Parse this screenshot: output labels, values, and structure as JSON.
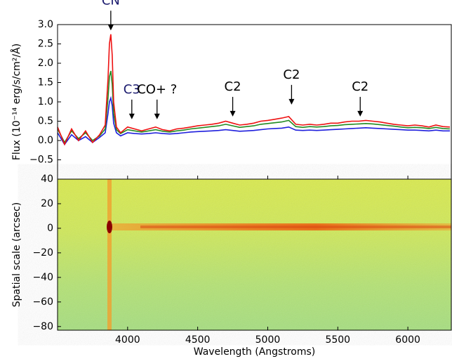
{
  "chart_data": [
    {
      "type": "line",
      "ylabel": "Flux (10⁻¹⁴ erg/s/cm²/Å)",
      "xlim": [
        3500,
        6310
      ],
      "xticks": [
        4000,
        4500,
        5000,
        5500,
        6000
      ],
      "ylim": [
        -1.0,
        3.0
      ],
      "yticks": [
        {
          "value": 3,
          "label": "3.0"
        },
        2.5,
        {
          "value": 2,
          "label": "2.0"
        },
        1.5,
        {
          "value": 1,
          "label": "1.0"
        },
        0.5,
        {
          "value": 0,
          "label": "0.0"
        },
        {
          "value": -0.5,
          "label": "−0.5"
        }
      ],
      "x": [
        3500,
        3550,
        3600,
        3650,
        3700,
        3750,
        3800,
        3840,
        3860,
        3870,
        3880,
        3890,
        3900,
        3920,
        3950,
        4000,
        4050,
        4100,
        4150,
        4200,
        4250,
        4300,
        4350,
        4400,
        4450,
        4500,
        4550,
        4600,
        4650,
        4700,
        4750,
        4800,
        4850,
        4900,
        4950,
        5000,
        5050,
        5100,
        5150,
        5200,
        5250,
        5300,
        5350,
        5400,
        5450,
        5500,
        5550,
        5600,
        5650,
        5700,
        5750,
        5800,
        5850,
        5900,
        5950,
        6000,
        6050,
        6100,
        6150,
        6200,
        6250,
        6300
      ],
      "series": [
        {
          "color": "#1f1fdd",
          "values": [
            0.2,
            -0.1,
            0.15,
            0.0,
            0.1,
            -0.05,
            0.08,
            0.2,
            0.7,
            1.0,
            1.1,
            0.9,
            0.45,
            0.2,
            0.12,
            0.2,
            0.18,
            0.17,
            0.18,
            0.2,
            0.18,
            0.17,
            0.18,
            0.2,
            0.22,
            0.23,
            0.24,
            0.25,
            0.26,
            0.28,
            0.26,
            0.24,
            0.25,
            0.26,
            0.28,
            0.3,
            0.31,
            0.32,
            0.35,
            0.27,
            0.26,
            0.27,
            0.26,
            0.27,
            0.28,
            0.29,
            0.3,
            0.31,
            0.32,
            0.33,
            0.32,
            0.31,
            0.3,
            0.29,
            0.28,
            0.27,
            0.27,
            0.26,
            0.25,
            0.27,
            0.25,
            0.25
          ]
        },
        {
          "color": "#228b22",
          "values": [
            0.3,
            -0.05,
            0.25,
            0.05,
            0.2,
            0.0,
            0.12,
            0.3,
            1.1,
            1.65,
            1.8,
            1.45,
            0.7,
            0.28,
            0.18,
            0.28,
            0.25,
            0.22,
            0.25,
            0.28,
            0.24,
            0.22,
            0.25,
            0.27,
            0.3,
            0.32,
            0.34,
            0.36,
            0.38,
            0.42,
            0.38,
            0.34,
            0.36,
            0.38,
            0.42,
            0.44,
            0.46,
            0.48,
            0.52,
            0.36,
            0.34,
            0.36,
            0.35,
            0.36,
            0.38,
            0.39,
            0.41,
            0.42,
            0.43,
            0.44,
            0.43,
            0.41,
            0.39,
            0.37,
            0.35,
            0.33,
            0.34,
            0.33,
            0.31,
            0.34,
            0.31,
            0.3
          ]
        },
        {
          "color": "#ee1111",
          "values": [
            0.35,
            -0.1,
            0.3,
            0.0,
            0.25,
            -0.05,
            0.15,
            0.4,
            1.6,
            2.5,
            2.75,
            2.2,
            1.0,
            0.35,
            0.2,
            0.35,
            0.3,
            0.25,
            0.3,
            0.35,
            0.28,
            0.25,
            0.3,
            0.32,
            0.35,
            0.38,
            0.4,
            0.42,
            0.45,
            0.5,
            0.45,
            0.4,
            0.42,
            0.45,
            0.5,
            0.52,
            0.55,
            0.58,
            0.62,
            0.42,
            0.4,
            0.42,
            0.4,
            0.42,
            0.45,
            0.45,
            0.48,
            0.5,
            0.5,
            0.52,
            0.5,
            0.48,
            0.45,
            0.42,
            0.4,
            0.38,
            0.4,
            0.38,
            0.35,
            0.4,
            0.36,
            0.35
          ]
        }
      ],
      "annotations": [
        {
          "text": "CN",
          "x": 3880,
          "y": 2.85,
          "color": "#1a1a6e"
        },
        {
          "text": "C3",
          "x": 4030,
          "y": 0.55,
          "color": "#1a1a6e"
        },
        {
          "text": "CO+ ?",
          "x": 4210,
          "y": 0.55,
          "color": "#000000"
        },
        {
          "text": "C2",
          "x": 4750,
          "y": 0.62,
          "color": "#000000"
        },
        {
          "text": "C2",
          "x": 5170,
          "y": 0.93,
          "color": "#000000"
        },
        {
          "text": "C2",
          "x": 5660,
          "y": 0.62,
          "color": "#000000"
        }
      ]
    },
    {
      "type": "image",
      "xlabel": "Wavelength (Angstroms)",
      "ylabel": "Spatial scale (arcsec)",
      "xlim": [
        3500,
        6310
      ],
      "xticks": [
        4000,
        4500,
        5000,
        5500,
        6000
      ],
      "ylim": [
        -83,
        40
      ],
      "yticks": [
        40,
        20,
        0,
        {
          "value": -20,
          "label": "−20"
        },
        {
          "value": -40,
          "label": "−40"
        },
        {
          "value": -60,
          "label": "−60"
        },
        {
          "value": -80,
          "label": "−80"
        }
      ]
    }
  ]
}
